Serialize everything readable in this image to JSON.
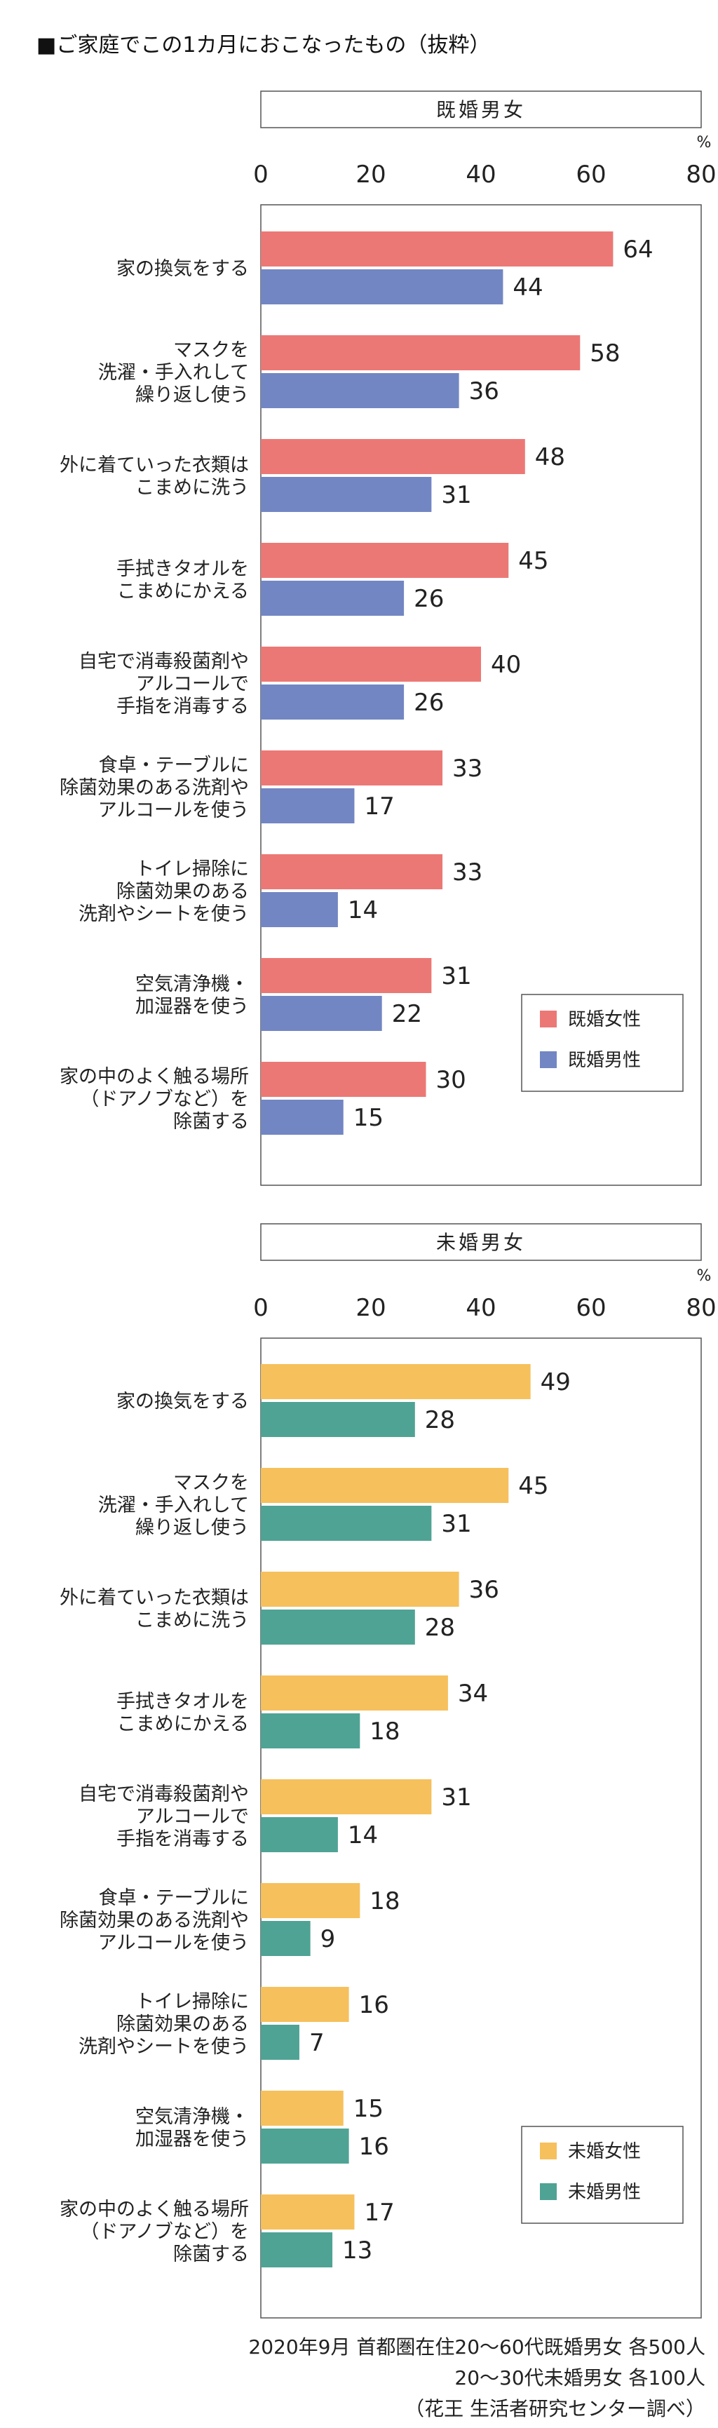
{
  "title": "■ご家庭でこの1カ月におこなったもの（抜粋）",
  "unit_symbol": "%",
  "chart_data": [
    {
      "type": "bar",
      "orientation": "horizontal",
      "panel_label": "既婚男女",
      "xlim": [
        0,
        80
      ],
      "x_ticks": [
        0,
        20,
        40,
        60,
        80
      ],
      "grid": false,
      "legend_position": "bottom-right",
      "categories": [
        [
          "家の換気をする"
        ],
        [
          "マスクを",
          "洗濯・手入れして",
          "繰り返し使う"
        ],
        [
          "外に着ていった衣類は",
          "こまめに洗う"
        ],
        [
          "手拭きタオルを",
          "こまめにかえる"
        ],
        [
          "自宅で消毒殺菌剤や",
          "アルコールで",
          "手指を消毒する"
        ],
        [
          "食卓・テーブルに",
          "除菌効果のある洗剤や",
          "アルコールを使う"
        ],
        [
          "トイレ掃除に",
          "除菌効果のある",
          "洗剤やシートを使う"
        ],
        [
          "空気清浄機・",
          "加湿器を使う"
        ],
        [
          "家の中のよく触る場所",
          "（ドアノブなど）を",
          "除菌する"
        ]
      ],
      "series": [
        {
          "name": "既婚女性",
          "color": "#ec7875",
          "values": [
            64,
            58,
            48,
            45,
            40,
            33,
            33,
            31,
            30
          ]
        },
        {
          "name": "既婚男性",
          "color": "#7286c3",
          "values": [
            44,
            36,
            31,
            26,
            26,
            17,
            14,
            22,
            15
          ]
        }
      ]
    },
    {
      "type": "bar",
      "orientation": "horizontal",
      "panel_label": "未婚男女",
      "xlim": [
        0,
        80
      ],
      "x_ticks": [
        0,
        20,
        40,
        60,
        80
      ],
      "grid": false,
      "legend_position": "bottom-right",
      "categories": [
        [
          "家の換気をする"
        ],
        [
          "マスクを",
          "洗濯・手入れして",
          "繰り返し使う"
        ],
        [
          "外に着ていった衣類は",
          "こまめに洗う"
        ],
        [
          "手拭きタオルを",
          "こまめにかえる"
        ],
        [
          "自宅で消毒殺菌剤や",
          "アルコールで",
          "手指を消毒する"
        ],
        [
          "食卓・テーブルに",
          "除菌効果のある洗剤や",
          "アルコールを使う"
        ],
        [
          "トイレ掃除に",
          "除菌効果のある",
          "洗剤やシートを使う"
        ],
        [
          "空気清浄機・",
          "加湿器を使う"
        ],
        [
          "家の中のよく触る場所",
          "（ドアノブなど）を",
          "除菌する"
        ]
      ],
      "series": [
        {
          "name": "未婚女性",
          "color": "#f6c05c",
          "values": [
            49,
            45,
            36,
            34,
            31,
            18,
            16,
            15,
            17
          ]
        },
        {
          "name": "未婚男性",
          "color": "#4fa394",
          "values": [
            28,
            31,
            28,
            18,
            14,
            9,
            7,
            16,
            13
          ]
        }
      ]
    }
  ],
  "footnote": [
    "2020年9月 首都圏在住20～60代既婚男女 各500人",
    "20～30代未婚男女 各100人",
    "（花王 生活者研究センター調べ）"
  ]
}
